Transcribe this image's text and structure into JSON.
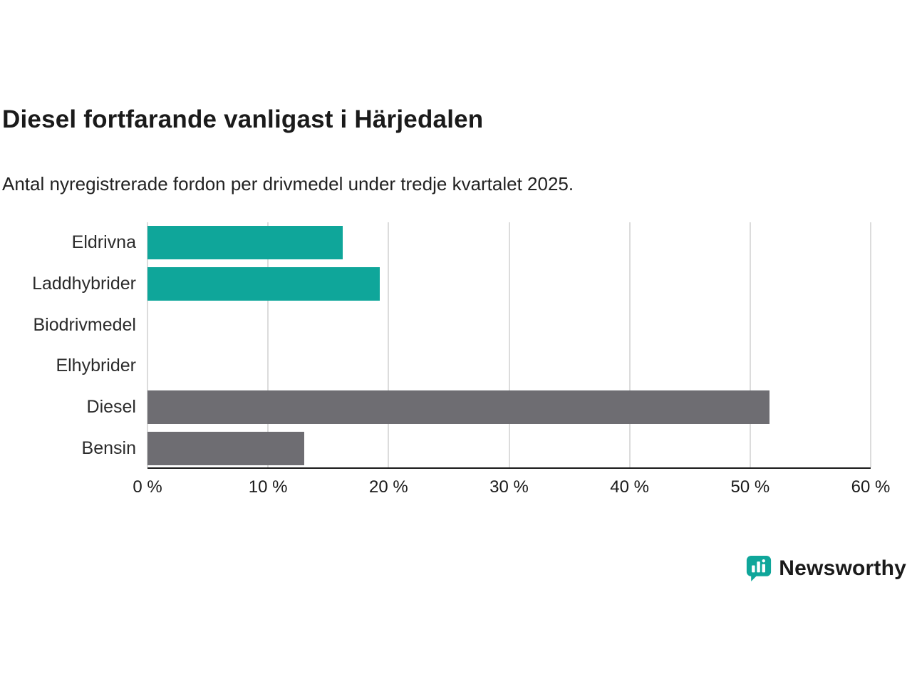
{
  "page": {
    "title": "Diesel fortfarande vanligast i Härjedalen",
    "subtitle": "Antal nyregistrerade fordon per drivmedel under tredje kvartalet 2025."
  },
  "chart_data": {
    "type": "bar",
    "orientation": "horizontal",
    "title": "Diesel fortfarande vanligast i Härjedalen",
    "subtitle": "Antal nyregistrerade fordon per drivmedel under tredje kvartalet 2025.",
    "categories": [
      "Eldrivna",
      "Laddhybrider",
      "Biodrivmedel",
      "Elhybrider",
      "Diesel",
      "Bensin"
    ],
    "values": [
      16.2,
      19.3,
      0,
      0,
      51.6,
      13.0
    ],
    "unit": "%",
    "bar_colors": [
      "#0fa69a",
      "#0fa69a",
      "#0fa69a",
      "#0fa69a",
      "#6e6d72",
      "#6e6d72"
    ],
    "xlim": [
      0,
      60
    ],
    "x_ticks": [
      0,
      10,
      20,
      30,
      40,
      50,
      60
    ],
    "x_tick_labels": [
      "0 %",
      "10 %",
      "20 %",
      "30 %",
      "40 %",
      "50 %",
      "60 %"
    ],
    "grid": true,
    "legend": false
  },
  "branding": {
    "logo_label": "Newsworthy",
    "brand_color": "#0fa69a"
  },
  "colors": {
    "teal": "#0fa69a",
    "gray": "#6e6d72",
    "gridline": "#dcdcdc",
    "axis": "#1a1a1a",
    "background": "#ffffff"
  }
}
